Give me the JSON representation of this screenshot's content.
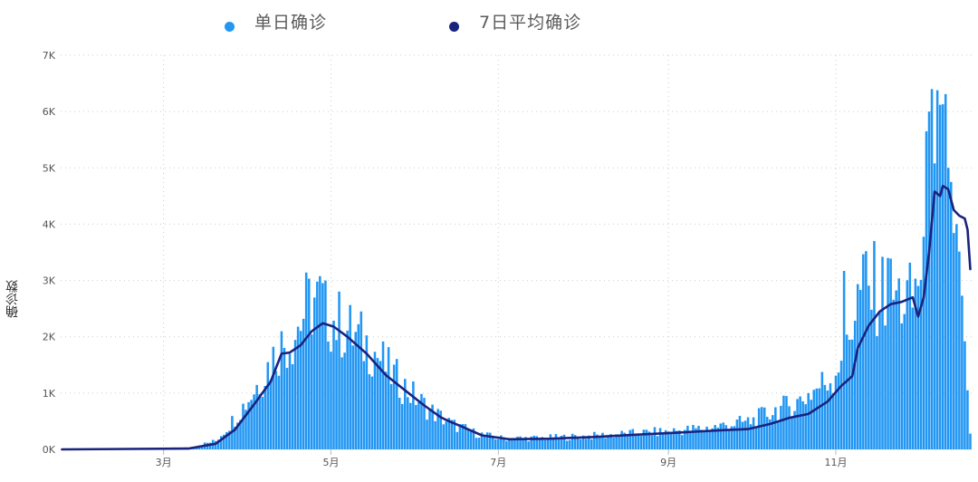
{
  "chart_data": {
    "type": "bar",
    "ylabel": "确诊数",
    "xlabel": "",
    "ylim": [
      0,
      7000
    ],
    "y_ticks": [
      "0K",
      "1K",
      "2K",
      "3K",
      "4K",
      "5K",
      "6K",
      "7K"
    ],
    "x_ticks": [
      "3月",
      "5月",
      "7月",
      "9月",
      "11月"
    ],
    "grid": true,
    "legend_position": "top",
    "colors": {
      "daily": "#2196f3",
      "avg": "#1a237e",
      "grid": "#cccccc",
      "axis_text": "#555555"
    },
    "series": [
      {
        "name": "单日确诊",
        "kind": "bar",
        "anchors": [
          [
            "2020-01-24",
            0
          ],
          [
            "2020-03-10",
            30
          ],
          [
            "2020-03-20",
            150
          ],
          [
            "2020-03-26",
            500
          ],
          [
            "2020-04-01",
            900
          ],
          [
            "2020-04-06",
            1300
          ],
          [
            "2020-04-12",
            1800
          ],
          [
            "2020-04-17",
            2000
          ],
          [
            "2020-04-22",
            2500
          ],
          [
            "2020-04-26",
            2700
          ],
          [
            "2020-05-02",
            2300
          ],
          [
            "2020-05-10",
            2000
          ],
          [
            "2020-05-16",
            1800
          ],
          [
            "2020-05-22",
            1400
          ],
          [
            "2020-05-30",
            1000
          ],
          [
            "2020-06-06",
            700
          ],
          [
            "2020-06-14",
            450
          ],
          [
            "2020-06-22",
            300
          ],
          [
            "2020-07-01",
            200
          ],
          [
            "2020-07-15",
            200
          ],
          [
            "2020-08-01",
            230
          ],
          [
            "2020-08-15",
            270
          ],
          [
            "2020-09-01",
            320
          ],
          [
            "2020-09-15",
            380
          ],
          [
            "2020-10-01",
            500
          ],
          [
            "2020-10-10",
            700
          ],
          [
            "2020-10-17",
            800
          ],
          [
            "2020-10-24",
            1050
          ],
          [
            "2020-10-31",
            1300
          ],
          [
            "2020-11-05",
            2000
          ],
          [
            "2020-11-10",
            2800
          ],
          [
            "2020-11-17",
            2800
          ],
          [
            "2020-11-24",
            2700
          ],
          [
            "2020-11-29",
            2600
          ],
          [
            "2020-12-03",
            3500
          ],
          [
            "2020-12-07",
            5000
          ],
          [
            "2020-12-11",
            5400
          ],
          [
            "2020-12-14",
            4300
          ],
          [
            "2020-12-17",
            2500
          ],
          [
            "2020-12-20",
            300
          ]
        ],
        "peaks": [
          [
            "2020-04-26",
            2980
          ],
          [
            "2020-04-29",
            3000
          ],
          [
            "2020-11-04",
            3170
          ],
          [
            "2020-11-12",
            3520
          ],
          [
            "2020-11-15",
            3700
          ],
          [
            "2020-11-20",
            3400
          ],
          [
            "2020-12-04",
            5650
          ],
          [
            "2020-12-05",
            6000
          ],
          [
            "2020-12-06",
            6400
          ],
          [
            "2020-12-07",
            5080
          ],
          [
            "2020-12-09",
            6120
          ],
          [
            "2020-12-10",
            6130
          ],
          [
            "2020-12-12",
            5000
          ],
          [
            "2020-12-13",
            4750
          ],
          [
            "2020-12-15",
            4000
          ],
          [
            "2020-12-18",
            1920
          ],
          [
            "2020-12-19",
            1050
          ],
          [
            "2020-12-20",
            280
          ]
        ]
      },
      {
        "name": "7日平均确诊",
        "kind": "line",
        "points": [
          [
            "2020-01-24",
            0
          ],
          [
            "2020-03-10",
            15
          ],
          [
            "2020-03-20",
            100
          ],
          [
            "2020-03-27",
            350
          ],
          [
            "2020-04-03",
            800
          ],
          [
            "2020-04-09",
            1200
          ],
          [
            "2020-04-13",
            1700
          ],
          [
            "2020-04-16",
            1720
          ],
          [
            "2020-04-20",
            1850
          ],
          [
            "2020-04-24",
            2100
          ],
          [
            "2020-04-28",
            2240
          ],
          [
            "2020-05-02",
            2180
          ],
          [
            "2020-05-07",
            2000
          ],
          [
            "2020-05-14",
            1700
          ],
          [
            "2020-05-21",
            1320
          ],
          [
            "2020-05-28",
            1050
          ],
          [
            "2020-06-04",
            780
          ],
          [
            "2020-06-10",
            570
          ],
          [
            "2020-06-13",
            500
          ],
          [
            "2020-06-17",
            420
          ],
          [
            "2020-06-25",
            250
          ],
          [
            "2020-07-05",
            180
          ],
          [
            "2020-07-20",
            190
          ],
          [
            "2020-08-05",
            220
          ],
          [
            "2020-08-20",
            260
          ],
          [
            "2020-09-05",
            300
          ],
          [
            "2020-09-20",
            340
          ],
          [
            "2020-09-30",
            360
          ],
          [
            "2020-10-08",
            450
          ],
          [
            "2020-10-15",
            560
          ],
          [
            "2020-10-22",
            630
          ],
          [
            "2020-10-29",
            850
          ],
          [
            "2020-11-03",
            1130
          ],
          [
            "2020-11-07",
            1300
          ],
          [
            "2020-11-09",
            1800
          ],
          [
            "2020-11-13",
            2200
          ],
          [
            "2020-11-17",
            2450
          ],
          [
            "2020-11-21",
            2580
          ],
          [
            "2020-11-25",
            2620
          ],
          [
            "2020-11-29",
            2700
          ],
          [
            "2020-12-01",
            2360
          ],
          [
            "2020-12-03",
            2700
          ],
          [
            "2020-12-05",
            3500
          ],
          [
            "2020-12-07",
            4580
          ],
          [
            "2020-12-09",
            4500
          ],
          [
            "2020-12-10",
            4680
          ],
          [
            "2020-12-12",
            4620
          ],
          [
            "2020-12-14",
            4250
          ],
          [
            "2020-12-16",
            4150
          ],
          [
            "2020-12-18",
            4100
          ],
          [
            "2020-12-19",
            3900
          ],
          [
            "2020-12-20",
            3200
          ]
        ]
      }
    ]
  }
}
